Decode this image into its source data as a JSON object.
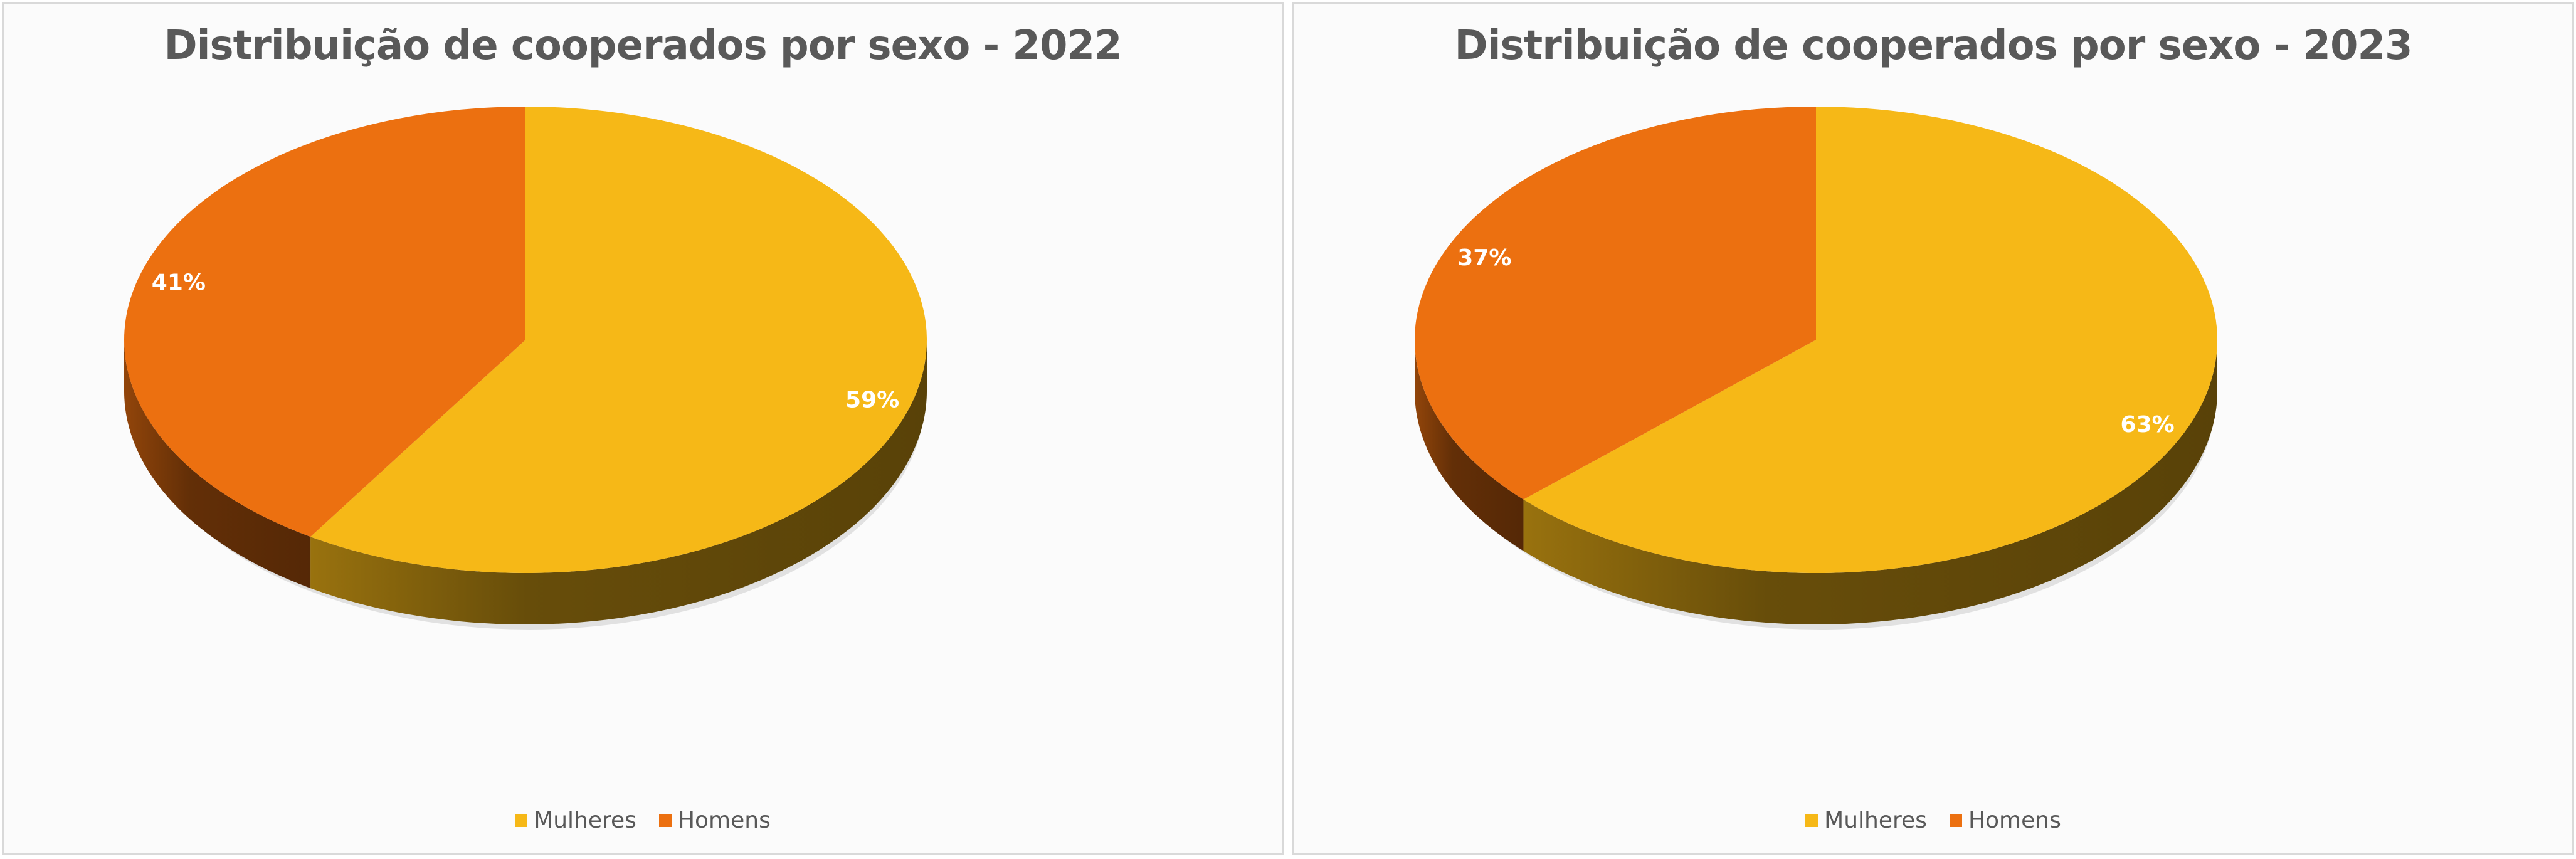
{
  "chart_data": [
    {
      "type": "pie",
      "title": "Distribuição de cooperados por sexo - 2022",
      "categories": [
        "Mulheres",
        "Homens"
      ],
      "values": [
        59,
        41
      ],
      "labels": [
        "59%",
        "41%"
      ],
      "colors": [
        "#F6B817",
        "#EC7010"
      ],
      "legend": {
        "placement": "bottom",
        "entries": [
          "Mulheres",
          "Homens"
        ]
      }
    },
    {
      "type": "pie",
      "title": "Distribuição de cooperados por sexo - 2023",
      "categories": [
        "Mulheres",
        "Homens"
      ],
      "values": [
        63,
        37
      ],
      "labels": [
        "63%",
        "37%"
      ],
      "colors": [
        "#F6B817",
        "#EC7010"
      ],
      "legend": {
        "placement": "bottom",
        "entries": [
          "Mulheres",
          "Homens"
        ]
      }
    }
  ]
}
